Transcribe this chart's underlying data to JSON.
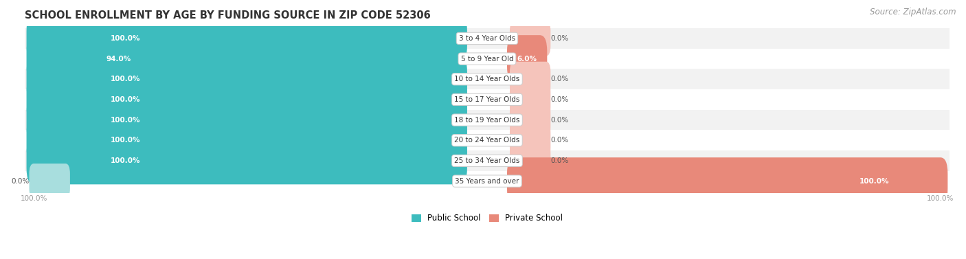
{
  "title": "SCHOOL ENROLLMENT BY AGE BY FUNDING SOURCE IN ZIP CODE 52306",
  "source": "Source: ZipAtlas.com",
  "categories": [
    "3 to 4 Year Olds",
    "5 to 9 Year Old",
    "10 to 14 Year Olds",
    "15 to 17 Year Olds",
    "18 to 19 Year Olds",
    "20 to 24 Year Olds",
    "25 to 34 Year Olds",
    "35 Years and over"
  ],
  "public_pct": [
    100.0,
    94.0,
    100.0,
    100.0,
    100.0,
    100.0,
    100.0,
    0.0
  ],
  "private_pct": [
    0.0,
    6.0,
    0.0,
    0.0,
    0.0,
    0.0,
    0.0,
    100.0
  ],
  "public_color": "#3dbcbe",
  "private_color": "#e8897a",
  "public_color_light": "#a8dede",
  "bg_color": "#ffffff",
  "row_bg_even": "#f2f2f2",
  "row_bg_odd": "#ffffff",
  "label_color_on_dark": "#ffffff",
  "label_color_outside": "#555555",
  "axis_label": "100.0%",
  "title_fontsize": 10.5,
  "source_fontsize": 8.5,
  "bar_label_fontsize": 7.5,
  "category_fontsize": 7.5
}
